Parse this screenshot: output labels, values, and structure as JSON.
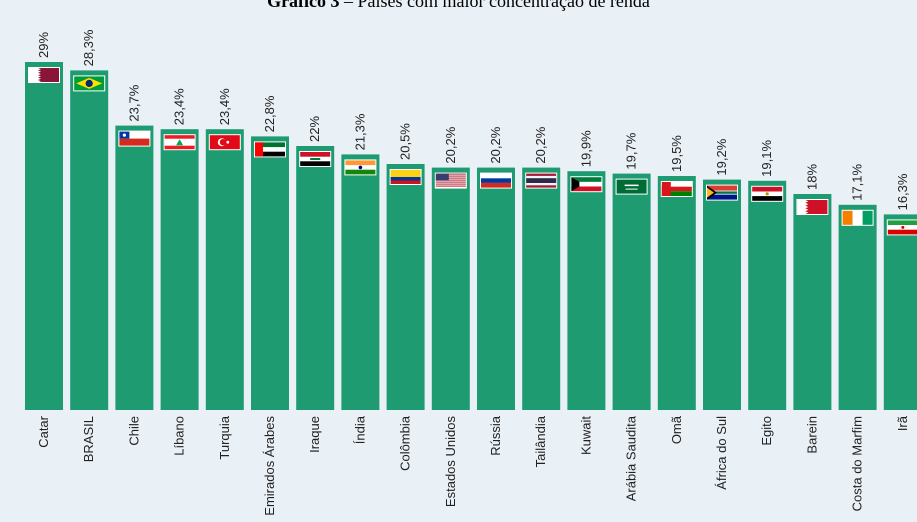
{
  "title_bold": "Gráfico 3",
  "title_rest": " – Países com maior concentração de renda",
  "colors": {
    "bar": "#1f9b72",
    "background": "#e9f0f6",
    "label": "#222222"
  },
  "chart_data": {
    "type": "bar",
    "title": "Gráfico 3 – Países com maior concentração de renda",
    "xlabel": "",
    "ylabel": "",
    "ylim": [
      0,
      29
    ],
    "grid": false,
    "categories": [
      "Catar",
      "BRASIL",
      "Chile",
      "Líbano",
      "Turquia",
      "Emirados Árabes",
      "Iraque",
      "Índia",
      "Colômbia",
      "Estados Unidos",
      "Rússia",
      "Tailândia",
      "Kuwait",
      "Arábia Saudita",
      "Omã",
      "África do Sul",
      "Egito",
      "Barein",
      "Costa do Marfim",
      "Irã"
    ],
    "values": [
      29,
      28.3,
      23.7,
      23.4,
      23.4,
      22.8,
      22,
      21.3,
      20.5,
      20.2,
      20.2,
      20.2,
      19.9,
      19.7,
      19.5,
      19.2,
      19.1,
      18,
      17.1,
      16.3
    ],
    "value_labels": [
      "29%",
      "28,3%",
      "23,7%",
      "23,4%",
      "23,4%",
      "22,8%",
      "22%",
      "21,3%",
      "20,5%",
      "20,2%",
      "20,2%",
      "20,2%",
      "19,9%",
      "19,7%",
      "19,5%",
      "19,2%",
      "19,1%",
      "18%",
      "17,1%",
      "16,3%"
    ],
    "flag_icons": [
      "flag-qatar-icon",
      "flag-brazil-icon",
      "flag-chile-icon",
      "flag-lebanon-icon",
      "flag-turkey-icon",
      "flag-uae-icon",
      "flag-iraq-icon",
      "flag-india-icon",
      "flag-colombia-icon",
      "flag-usa-icon",
      "flag-russia-icon",
      "flag-thailand-icon",
      "flag-kuwait-icon",
      "flag-saudi-arabia-icon",
      "flag-oman-icon",
      "flag-south-africa-icon",
      "flag-egypt-icon",
      "flag-bahrain-icon",
      "flag-ivory-coast-icon",
      "flag-iran-icon"
    ]
  }
}
